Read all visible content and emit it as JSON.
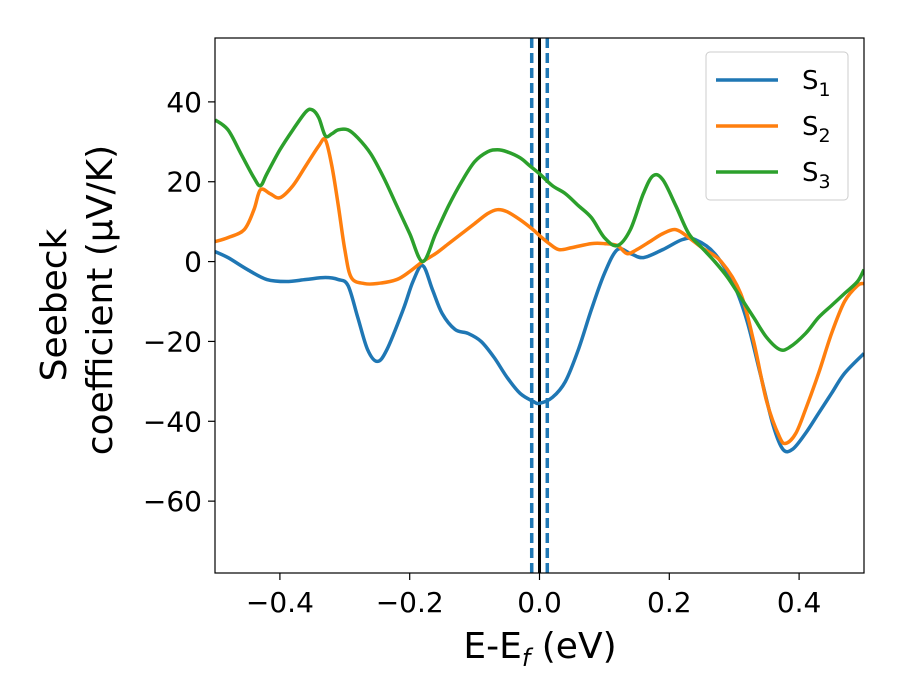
{
  "chart_data": {
    "type": "line",
    "xlabel_main": "E-E",
    "xlabel_sub": "f",
    "xlabel_unit": " (eV)",
    "ylabel_line1": "Seebeck",
    "ylabel_line2": "coefficient  (μV/K)",
    "xlim": [
      -0.5,
      0.5
    ],
    "ylim": [
      -78,
      56
    ],
    "xticks": [
      -0.4,
      -0.2,
      0.0,
      0.2,
      0.4
    ],
    "xtick_labels": [
      "−0.4",
      "−0.2",
      "0.0",
      "0.2",
      "0.4"
    ],
    "yticks": [
      -60,
      -40,
      -20,
      0,
      20,
      40
    ],
    "ytick_labels": [
      "−60",
      "−40",
      "−20",
      "0",
      "20",
      "40"
    ],
    "grid": false,
    "legend_position": "top-right",
    "vertical_lines": [
      {
        "x": 0.0,
        "color": "#000000",
        "style": "solid"
      },
      {
        "x": -0.012,
        "color": "#1f77b4",
        "style": "dashed"
      },
      {
        "x": 0.012,
        "color": "#1f77b4",
        "style": "dashed"
      }
    ],
    "series": [
      {
        "label_main": "S",
        "label_sub": "1",
        "color": "#1f77b4",
        "points": [
          [
            -0.5,
            2.5
          ],
          [
            -0.48,
            1
          ],
          [
            -0.45,
            -2
          ],
          [
            -0.42,
            -4.5
          ],
          [
            -0.39,
            -5
          ],
          [
            -0.36,
            -4.5
          ],
          [
            -0.33,
            -4
          ],
          [
            -0.31,
            -4.5
          ],
          [
            -0.295,
            -6
          ],
          [
            -0.28,
            -14
          ],
          [
            -0.265,
            -22
          ],
          [
            -0.25,
            -25
          ],
          [
            -0.235,
            -22
          ],
          [
            -0.21,
            -12
          ],
          [
            -0.195,
            -5
          ],
          [
            -0.18,
            -1
          ],
          [
            -0.165,
            -7
          ],
          [
            -0.15,
            -13
          ],
          [
            -0.13,
            -17
          ],
          [
            -0.11,
            -18
          ],
          [
            -0.09,
            -20
          ],
          [
            -0.07,
            -24
          ],
          [
            -0.05,
            -29
          ],
          [
            -0.03,
            -33
          ],
          [
            -0.01,
            -35
          ],
          [
            0.0,
            -35.5
          ],
          [
            0.02,
            -34
          ],
          [
            0.04,
            -30
          ],
          [
            0.06,
            -22
          ],
          [
            0.08,
            -12
          ],
          [
            0.1,
            -3
          ],
          [
            0.12,
            3
          ],
          [
            0.14,
            2
          ],
          [
            0.16,
            1
          ],
          [
            0.19,
            3
          ],
          [
            0.22,
            5.5
          ],
          [
            0.24,
            5.5
          ],
          [
            0.27,
            2
          ],
          [
            0.3,
            -6
          ],
          [
            0.32,
            -15
          ],
          [
            0.34,
            -28
          ],
          [
            0.36,
            -41
          ],
          [
            0.375,
            -47
          ],
          [
            0.39,
            -47
          ],
          [
            0.41,
            -43
          ],
          [
            0.43,
            -38
          ],
          [
            0.45,
            -33
          ],
          [
            0.47,
            -28
          ],
          [
            0.5,
            -23
          ]
        ]
      },
      {
        "label_main": "S",
        "label_sub": "2",
        "color": "#ff7f0e",
        "points": [
          [
            -0.5,
            5
          ],
          [
            -0.48,
            6
          ],
          [
            -0.455,
            8
          ],
          [
            -0.44,
            13
          ],
          [
            -0.43,
            18
          ],
          [
            -0.415,
            17
          ],
          [
            -0.4,
            16
          ],
          [
            -0.38,
            19
          ],
          [
            -0.36,
            24
          ],
          [
            -0.34,
            29
          ],
          [
            -0.33,
            30.5
          ],
          [
            -0.32,
            24
          ],
          [
            -0.31,
            14
          ],
          [
            -0.3,
            3
          ],
          [
            -0.29,
            -4
          ],
          [
            -0.27,
            -5.5
          ],
          [
            -0.25,
            -5.5
          ],
          [
            -0.22,
            -4.5
          ],
          [
            -0.2,
            -2.5
          ],
          [
            -0.18,
            0
          ],
          [
            -0.16,
            2
          ],
          [
            -0.14,
            4.5
          ],
          [
            -0.12,
            7
          ],
          [
            -0.1,
            9.5
          ],
          [
            -0.08,
            12
          ],
          [
            -0.065,
            13
          ],
          [
            -0.05,
            12.5
          ],
          [
            -0.03,
            10.5
          ],
          [
            -0.01,
            8
          ],
          [
            0.0,
            6.5
          ],
          [
            0.015,
            4.5
          ],
          [
            0.03,
            3
          ],
          [
            0.05,
            3.5
          ],
          [
            0.08,
            4.5
          ],
          [
            0.1,
            4.5
          ],
          [
            0.12,
            4
          ],
          [
            0.135,
            2
          ],
          [
            0.15,
            3
          ],
          [
            0.17,
            5
          ],
          [
            0.19,
            7
          ],
          [
            0.21,
            8
          ],
          [
            0.23,
            6
          ],
          [
            0.25,
            3.5
          ],
          [
            0.28,
            0
          ],
          [
            0.31,
            -8
          ],
          [
            0.33,
            -20
          ],
          [
            0.35,
            -35
          ],
          [
            0.37,
            -44
          ],
          [
            0.38,
            -45.5
          ],
          [
            0.395,
            -43
          ],
          [
            0.41,
            -37
          ],
          [
            0.43,
            -28
          ],
          [
            0.45,
            -18
          ],
          [
            0.47,
            -10
          ],
          [
            0.49,
            -6
          ],
          [
            0.5,
            -5.5
          ]
        ]
      },
      {
        "label_main": "S",
        "label_sub": "3",
        "color": "#2ca02c",
        "points": [
          [
            -0.5,
            35.5
          ],
          [
            -0.48,
            33
          ],
          [
            -0.46,
            27
          ],
          [
            -0.44,
            21
          ],
          [
            -0.43,
            19
          ],
          [
            -0.42,
            22
          ],
          [
            -0.4,
            28
          ],
          [
            -0.38,
            33
          ],
          [
            -0.36,
            37.5
          ],
          [
            -0.35,
            38
          ],
          [
            -0.34,
            36
          ],
          [
            -0.33,
            31.5
          ],
          [
            -0.32,
            32
          ],
          [
            -0.31,
            33
          ],
          [
            -0.295,
            33
          ],
          [
            -0.28,
            31
          ],
          [
            -0.26,
            27
          ],
          [
            -0.24,
            21
          ],
          [
            -0.22,
            14
          ],
          [
            -0.2,
            7
          ],
          [
            -0.18,
            0
          ],
          [
            -0.16,
            7
          ],
          [
            -0.14,
            14
          ],
          [
            -0.12,
            20
          ],
          [
            -0.1,
            25
          ],
          [
            -0.08,
            27.5
          ],
          [
            -0.065,
            28
          ],
          [
            -0.05,
            27.5
          ],
          [
            -0.03,
            26
          ],
          [
            -0.015,
            24
          ],
          [
            0.0,
            22
          ],
          [
            0.02,
            19
          ],
          [
            0.04,
            17
          ],
          [
            0.06,
            14
          ],
          [
            0.08,
            11
          ],
          [
            0.1,
            6
          ],
          [
            0.12,
            4
          ],
          [
            0.14,
            8
          ],
          [
            0.16,
            17
          ],
          [
            0.175,
            21.5
          ],
          [
            0.19,
            20.5
          ],
          [
            0.21,
            14
          ],
          [
            0.23,
            7
          ],
          [
            0.25,
            3.5
          ],
          [
            0.27,
            0
          ],
          [
            0.29,
            -4
          ],
          [
            0.31,
            -9
          ],
          [
            0.33,
            -14
          ],
          [
            0.35,
            -19
          ],
          [
            0.37,
            -22
          ],
          [
            0.385,
            -21.5
          ],
          [
            0.41,
            -18
          ],
          [
            0.43,
            -14
          ],
          [
            0.45,
            -11
          ],
          [
            0.47,
            -8
          ],
          [
            0.49,
            -5
          ],
          [
            0.5,
            -2
          ]
        ]
      }
    ]
  }
}
